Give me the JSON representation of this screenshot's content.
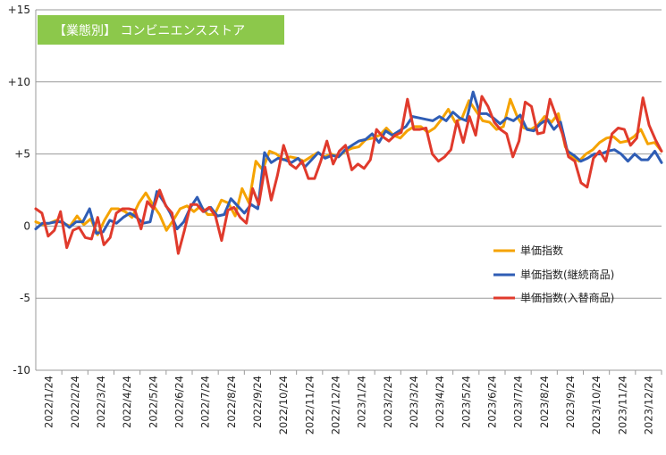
{
  "chart_data": {
    "type": "line",
    "title": "【業態別】 コンビニエンスストア",
    "title_bg": "#8CC84B",
    "ylim": [
      -10,
      15
    ],
    "yticks": [
      {
        "value": 15,
        "label": "+15"
      },
      {
        "value": 10,
        "label": "+10"
      },
      {
        "value": 5,
        "label": "+5"
      },
      {
        "value": 0,
        "label": "0"
      },
      {
        "value": -5,
        "label": "-5"
      },
      {
        "value": -10,
        "label": "-10"
      }
    ],
    "xtick_labels": [
      "2022/1/24",
      "2022/2/24",
      "2022/3/24",
      "2022/4/24",
      "2022/5/24",
      "2022/6/24",
      "2022/7/24",
      "2022/8/24",
      "2022/9/24",
      "2022/10/24",
      "2022/11/24",
      "2022/12/24",
      "2023/1/24",
      "2023/2/24",
      "2023/3/24",
      "2023/4/24",
      "2023/5/24",
      "2023/6/24",
      "2023/7/24",
      "2023/8/24",
      "2023/9/24",
      "2023/10/24",
      "2023/11/24",
      "2023/12/24"
    ],
    "grid": "horizontal",
    "legend_position": "right",
    "series": [
      {
        "name": "単価指数",
        "color": "#F5A300",
        "values": [
          0.3,
          0.1,
          0.2,
          0.4,
          0.2,
          0.0,
          0.7,
          0.1,
          0.5,
          -0.6,
          0.4,
          1.2,
          1.2,
          1.0,
          0.6,
          1.6,
          2.3,
          1.5,
          0.8,
          -0.3,
          0.4,
          1.2,
          1.4,
          1.0,
          1.4,
          0.8,
          0.8,
          1.8,
          1.6,
          0.7,
          2.6,
          1.6,
          4.5,
          3.9,
          5.2,
          5.0,
          4.6,
          4.8,
          4.7,
          4.5,
          4.8,
          5.1,
          4.8,
          5.0,
          4.8,
          5.2,
          5.4,
          5.5,
          6.0,
          6.1,
          6.3,
          6.8,
          6.3,
          6.1,
          6.6,
          6.9,
          6.9,
          6.5,
          6.8,
          7.4,
          8.1,
          7.2,
          7.5,
          8.7,
          8.0,
          7.3,
          7.2,
          6.7,
          6.9,
          8.8,
          7.6,
          6.8,
          6.7,
          7.0,
          7.6,
          7.2,
          7.8,
          5.5,
          4.8,
          4.5,
          5.0,
          5.3,
          5.8,
          6.1,
          6.2,
          5.8,
          5.9,
          6.2,
          6.7,
          5.7,
          5.8,
          5.2
        ]
      },
      {
        "name": "単価指数(継続商品)",
        "color": "#2F5DB5",
        "values": [
          -0.2,
          0.2,
          0.2,
          0.3,
          0.3,
          -0.1,
          0.3,
          0.3,
          1.2,
          -0.5,
          -0.4,
          0.4,
          0.2,
          0.6,
          0.9,
          0.6,
          0.2,
          0.3,
          2.4,
          1.7,
          0.9,
          -0.2,
          0.3,
          1.3,
          2.0,
          1.0,
          1.3,
          0.7,
          0.8,
          1.9,
          1.4,
          0.9,
          1.5,
          1.2,
          5.1,
          4.4,
          4.7,
          4.6,
          4.4,
          4.7,
          4.1,
          4.6,
          5.1,
          4.7,
          4.9,
          4.8,
          5.3,
          5.6,
          5.9,
          6.0,
          6.4,
          5.8,
          6.6,
          6.3,
          6.6,
          6.9,
          7.6,
          7.5,
          7.4,
          7.3,
          7.6,
          7.3,
          7.9,
          7.5,
          7.3,
          9.3,
          7.8,
          7.8,
          7.5,
          7.1,
          7.5,
          7.3,
          7.7,
          6.7,
          6.6,
          7.1,
          7.4,
          6.7,
          7.2,
          5.2,
          4.9,
          4.5,
          4.7,
          5.0,
          5.0,
          5.2,
          5.3,
          5.0,
          4.5,
          5.0,
          4.6,
          4.6,
          5.2,
          4.4
        ]
      },
      {
        "name": "単価指数(入替商品)",
        "color": "#E03A2C",
        "values": [
          1.2,
          0.9,
          -0.7,
          -0.3,
          1.0,
          -1.5,
          -0.3,
          -0.1,
          -0.8,
          -0.9,
          0.6,
          -1.3,
          -0.8,
          0.9,
          1.2,
          1.2,
          1.1,
          -0.2,
          1.7,
          1.2,
          2.5,
          1.4,
          0.9,
          -1.9,
          -0.3,
          1.5,
          1.5,
          1.0,
          1.3,
          0.7,
          -1.0,
          1.1,
          1.3,
          0.6,
          0.2,
          2.6,
          1.5,
          4.1,
          1.8,
          3.5,
          5.6,
          4.3,
          4.0,
          4.5,
          3.3,
          3.3,
          4.5,
          5.9,
          4.3,
          5.2,
          5.6,
          3.9,
          4.3,
          4.0,
          4.6,
          6.7,
          6.2,
          5.9,
          6.3,
          6.5,
          8.8,
          6.7,
          6.7,
          6.8,
          5.0,
          4.5,
          4.8,
          5.3,
          7.3,
          5.8,
          7.6,
          6.3,
          9.0,
          8.3,
          7.2,
          6.7,
          6.4,
          4.8,
          5.9,
          8.6,
          8.3,
          6.4,
          6.5,
          8.8,
          7.6,
          6.4,
          4.8,
          4.5,
          3.0,
          2.7,
          4.7,
          5.2,
          4.5,
          6.4,
          6.8,
          6.7,
          5.6,
          6.1,
          8.9,
          7.0,
          6.0,
          5.2
        ]
      }
    ]
  }
}
